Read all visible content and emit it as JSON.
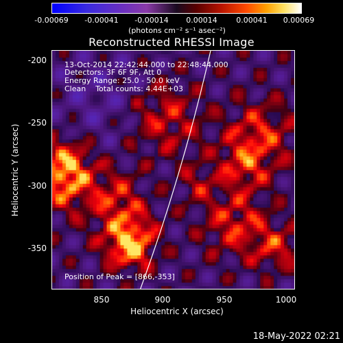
{
  "colorbar": {
    "ticks": [
      "-0.00069",
      "-0.00041",
      "-0.00014",
      "0.00014",
      "0.00041",
      "0.00069"
    ],
    "unit": "(photons cm⁻² s⁻¹ asec⁻²)"
  },
  "title": "Reconstructed RHESSI Image",
  "annotations": {
    "time": "13-Oct-2014 22:42:44.000 to 22:48:44.000",
    "detectors": "Detectors: 3F 6F 9F, Att 0",
    "energy": "Energy Range: 25.0 - 50.0 keV",
    "clean": "Clean    Total counts: 4.44E+03",
    "peak": "Position of Peak = [866,-353]"
  },
  "axes": {
    "xlabel": "Heliocentric X (arcsec)",
    "ylabel": "Heliocentric Y (arcsec)",
    "xticks": [
      "850",
      "900",
      "950",
      "1000"
    ],
    "yticks": [
      "-200",
      "-250",
      "-300",
      "-350"
    ],
    "xrange": [
      810,
      1000
    ],
    "yrange": [
      -385,
      -188
    ]
  },
  "timestamp": "18-May-2022 02:21"
}
